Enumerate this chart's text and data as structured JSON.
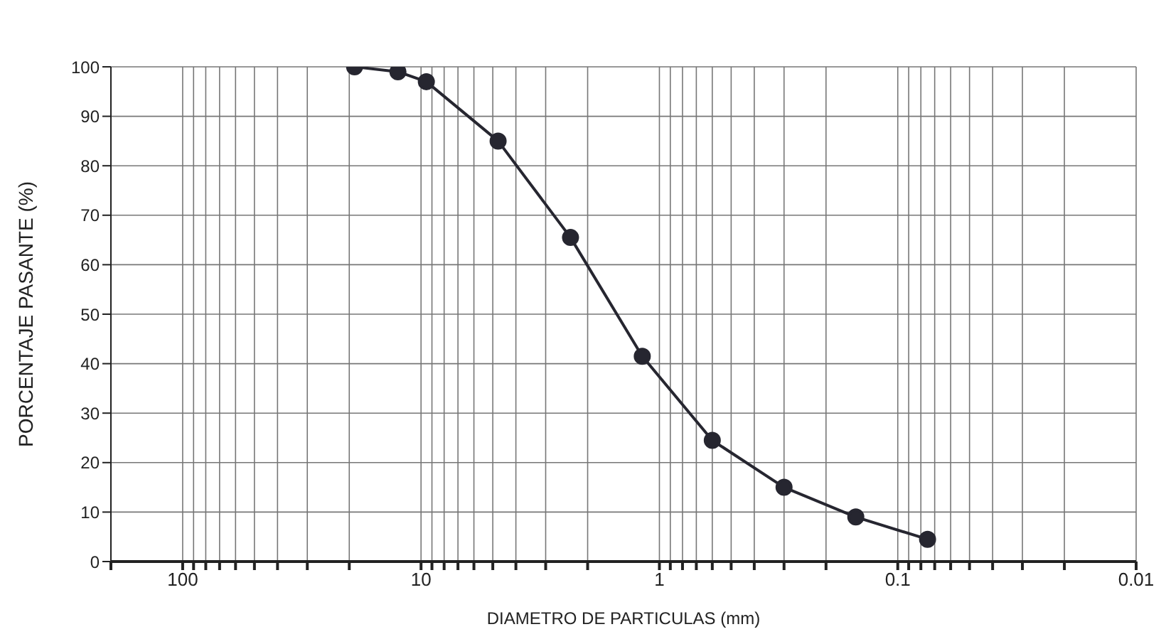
{
  "chart_data": {
    "type": "line",
    "xlabel": "DIAMETRO DE PARTICULAS (mm)",
    "ylabel": "PORCENTAJE  PASANTE (%)",
    "x": [
      19,
      12.5,
      9.5,
      4.75,
      2.36,
      1.18,
      0.6,
      0.3,
      0.15,
      0.075
    ],
    "series": [
      {
        "color": "#262630",
        "values": [
          100,
          99,
          97,
          85,
          65.5,
          41.5,
          24.5,
          15,
          9,
          4.5
        ]
      }
    ],
    "log": "x",
    "xlim": [
      200,
      0.01
    ],
    "xticks": [
      {
        "value": 200,
        "label": null
      },
      100,
      {
        "value": 90,
        "label": null
      },
      {
        "value": 80,
        "label": null
      },
      {
        "value": 70,
        "label": null
      },
      {
        "value": 60,
        "label": null
      },
      {
        "value": 50,
        "label": null
      },
      {
        "value": 40,
        "label": null
      },
      {
        "value": 30,
        "label": null
      },
      {
        "value": 20,
        "label": null
      },
      10,
      {
        "value": 9,
        "label": null
      },
      {
        "value": 8,
        "label": null
      },
      {
        "value": 7,
        "label": null
      },
      {
        "value": 6,
        "label": null
      },
      {
        "value": 5,
        "label": null
      },
      {
        "value": 4,
        "label": null
      },
      {
        "value": 3,
        "label": null
      },
      {
        "value": 2,
        "label": null
      },
      1,
      {
        "value": 0.9,
        "label": null
      },
      {
        "value": 0.8,
        "label": null
      },
      {
        "value": 0.7,
        "label": null
      },
      {
        "value": 0.6,
        "label": null
      },
      {
        "value": 0.5,
        "label": null
      },
      {
        "value": 0.4,
        "label": null
      },
      {
        "value": 0.3,
        "label": null
      },
      {
        "value": 0.2,
        "label": null
      },
      0.1,
      {
        "value": 0.09,
        "label": null
      },
      {
        "value": 0.08,
        "label": null
      },
      {
        "value": 0.07,
        "label": null
      },
      {
        "value": 0.06,
        "label": null
      },
      {
        "value": 0.05,
        "label": null
      },
      {
        "value": 0.04,
        "label": null
      },
      {
        "value": 0.03,
        "label": null
      },
      {
        "value": 0.02,
        "label": null
      },
      0.01
    ],
    "ylim": [
      0,
      100
    ],
    "yticks": [
      0,
      10,
      20,
      30,
      40,
      50,
      60,
      70,
      80,
      90,
      100
    ],
    "grid": true,
    "marker": "circle",
    "line_style": "solid"
  }
}
